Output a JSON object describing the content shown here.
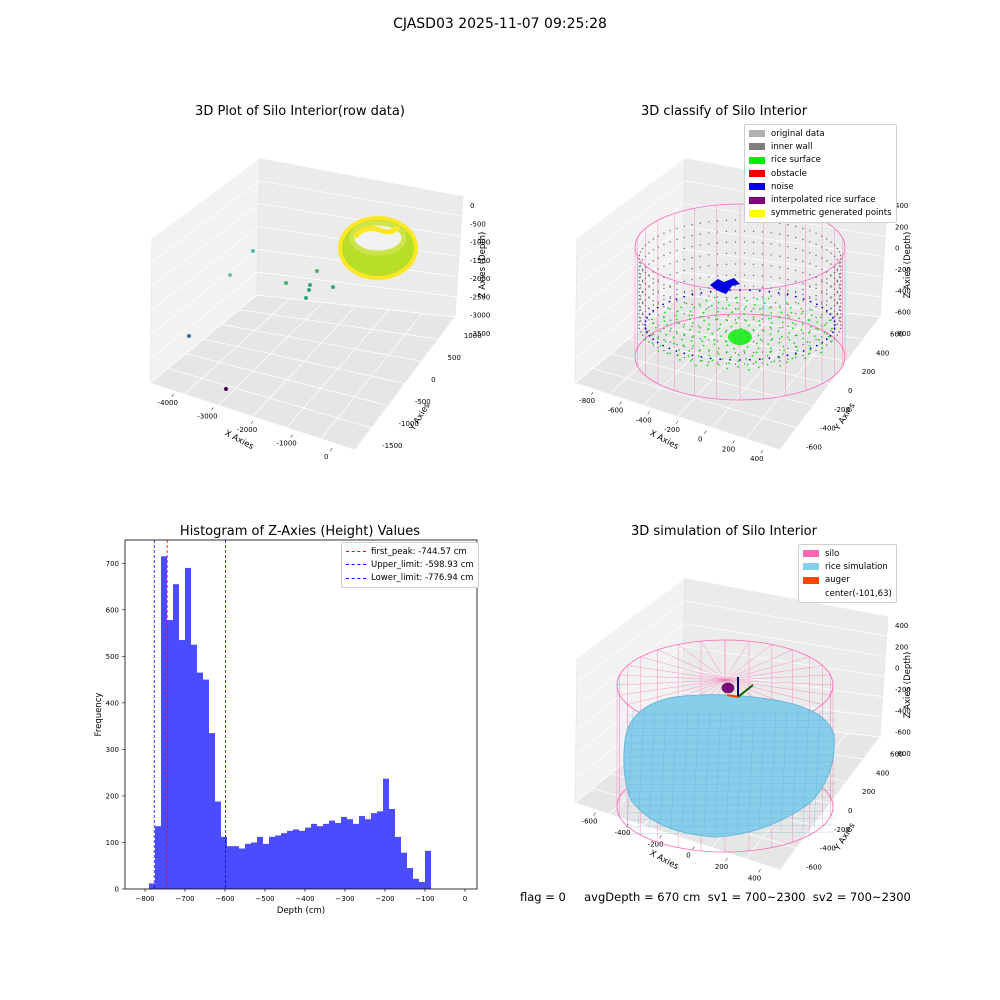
{
  "suptitle": "CJASD03 2025-11-07 09:25:28",
  "footer": "flag = 0     avgDepth = 670 cm  sv1 = 700~2300  sv2 = 700~2300",
  "chart_data": [
    {
      "type": "scatter",
      "title": "3D Plot of Silo Interior(row data)",
      "xlabel": "X Axies",
      "ylabel": "Y Axies",
      "zlabel": "Z Axies (Depth)",
      "x_ticks": [
        "-4000",
        "-3000",
        "-2000",
        "-1000",
        "0"
      ],
      "y_ticks": [
        "1000",
        "500",
        "0",
        "-500",
        "-1000",
        "-1500"
      ],
      "z_ticks": [
        "0",
        "-500",
        "-1000",
        "-1500",
        "-2000",
        "-2500",
        "-3000",
        "-3500"
      ],
      "xlim": [
        -4200,
        400
      ],
      "ylim": [
        -1500,
        1200
      ],
      "zlim": [
        -3700,
        200
      ],
      "colors": {
        "low": "#440154",
        "mid": "#21918c",
        "high": "#fde725",
        "surface": "#b8de29"
      }
    },
    {
      "type": "scatter",
      "title": "3D classify of Silo Interior",
      "xlabel": "X Axies",
      "ylabel": "Y Axies",
      "zlabel": "Z Axies (Depth)",
      "x_ticks": [
        "-800",
        "-600",
        "-400",
        "-200",
        "0",
        "200",
        "400"
      ],
      "y_ticks": [
        "600",
        "400",
        "200",
        "0",
        "-200",
        "-400",
        "-600"
      ],
      "z_ticks": [
        "400",
        "200",
        "0",
        "-200",
        "-400",
        "-600",
        "-800"
      ],
      "xlim": [
        -850,
        500
      ],
      "ylim": [
        -650,
        650
      ],
      "zlim": [
        -900,
        450
      ],
      "legend": [
        {
          "label": "original data",
          "color": "#b0b0b0"
        },
        {
          "label": "inner wall",
          "color": "#808080"
        },
        {
          "label": "rice surface",
          "color": "#00ee00"
        },
        {
          "label": "obstacle",
          "color": "#ee0000"
        },
        {
          "label": "noise",
          "color": "#0000dd"
        },
        {
          "label": "interpolated rice surface",
          "color": "#800080"
        },
        {
          "label": "symmetric generated points",
          "color": "#ffff00"
        }
      ],
      "silo_wire_color": "#ff66bb"
    },
    {
      "type": "bar",
      "title": "Histogram of Z-Axies (Height) Values",
      "xlabel": "Depth (cm)",
      "ylabel": "Frequency",
      "xlim": [
        -850,
        30
      ],
      "ylim": [
        0,
        750
      ],
      "x_ticks": [
        -800,
        -700,
        -600,
        -500,
        -400,
        -300,
        -200,
        -100,
        0
      ],
      "y_ticks": [
        0,
        100,
        200,
        300,
        400,
        500,
        600,
        700
      ],
      "bin_start": -790,
      "bin_width": 15,
      "values": [
        12,
        135,
        715,
        578,
        655,
        535,
        690,
        525,
        465,
        450,
        335,
        188,
        112,
        92,
        92,
        87,
        97,
        100,
        112,
        97,
        112,
        115,
        120,
        125,
        128,
        125,
        132,
        140,
        135,
        140,
        147,
        142,
        155,
        150,
        140,
        157,
        150,
        163,
        167,
        237,
        172,
        112,
        78,
        45,
        22,
        15,
        82
      ],
      "bar_color": "#0000ff",
      "bar_alpha": 0.7,
      "vlines": [
        {
          "label": "first_peak: -744.57 cm",
          "x": -744.57,
          "color": "#ff0000"
        },
        {
          "label": "Upper_limit: -598.93 cm",
          "x": -598.93,
          "color": "#0000ff"
        },
        {
          "label": "Lower_limit: -776.94 cm",
          "x": -776.94,
          "color": "#0000ff"
        }
      ]
    },
    {
      "type": "scatter",
      "title": "3D simulation of Silo Interior",
      "xlabel": "X Axies",
      "ylabel": "Y Axies",
      "zlabel": "Z Axies (Depth)",
      "x_ticks": [
        "-600",
        "-400",
        "-200",
        "0",
        "200",
        "400"
      ],
      "y_ticks": [
        "600",
        "400",
        "200",
        "0",
        "-200",
        "-400",
        "-600"
      ],
      "z_ticks": [
        "400",
        "200",
        "0",
        "-200",
        "-400",
        "-600",
        "-800"
      ],
      "xlim": [
        -700,
        500
      ],
      "ylim": [
        -650,
        650
      ],
      "zlim": [
        -900,
        450
      ],
      "legend": [
        {
          "label": "silo",
          "color": "#ff69b4"
        },
        {
          "label": "rice simulation",
          "color": "#87ceeb"
        },
        {
          "label": "auger",
          "color": "#ff4500"
        },
        {
          "label": "center(-101,63)",
          "color": ""
        }
      ],
      "center": [
        -101,
        63
      ]
    }
  ]
}
